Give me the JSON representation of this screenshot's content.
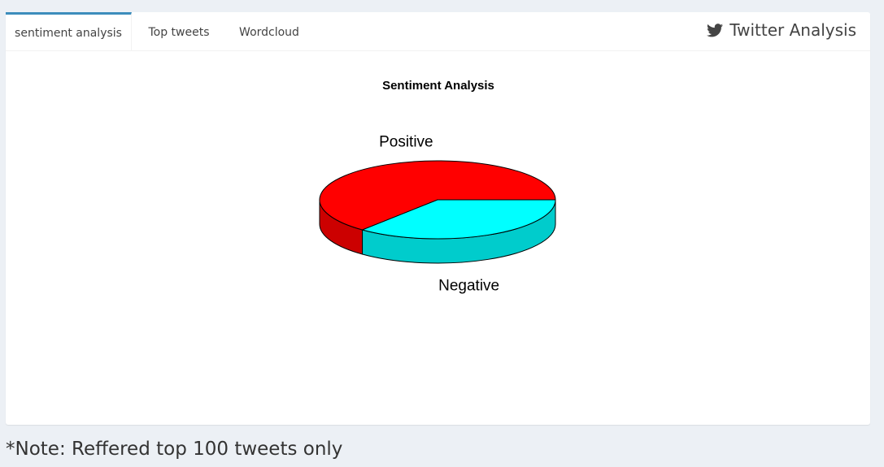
{
  "tabs": [
    {
      "label": "sentiment analysis",
      "active": true
    },
    {
      "label": "Top tweets",
      "active": false
    },
    {
      "label": "Wordcloud",
      "active": false
    }
  ],
  "brand": {
    "title": "Twitter Analysis",
    "icon": "twitter-icon"
  },
  "chart_data": {
    "type": "pie",
    "title": "Sentiment Analysis",
    "style": "3d",
    "slices": [
      {
        "label": "Positive",
        "value": 64,
        "color": "#ff0000"
      },
      {
        "label": "Negative",
        "value": 36,
        "color": "#00ffff"
      }
    ]
  },
  "footer": {
    "note": "*Note: Reffered top 100 tweets only"
  },
  "colors": {
    "accent": "#3c8dbc",
    "background": "#ecf0f5"
  }
}
